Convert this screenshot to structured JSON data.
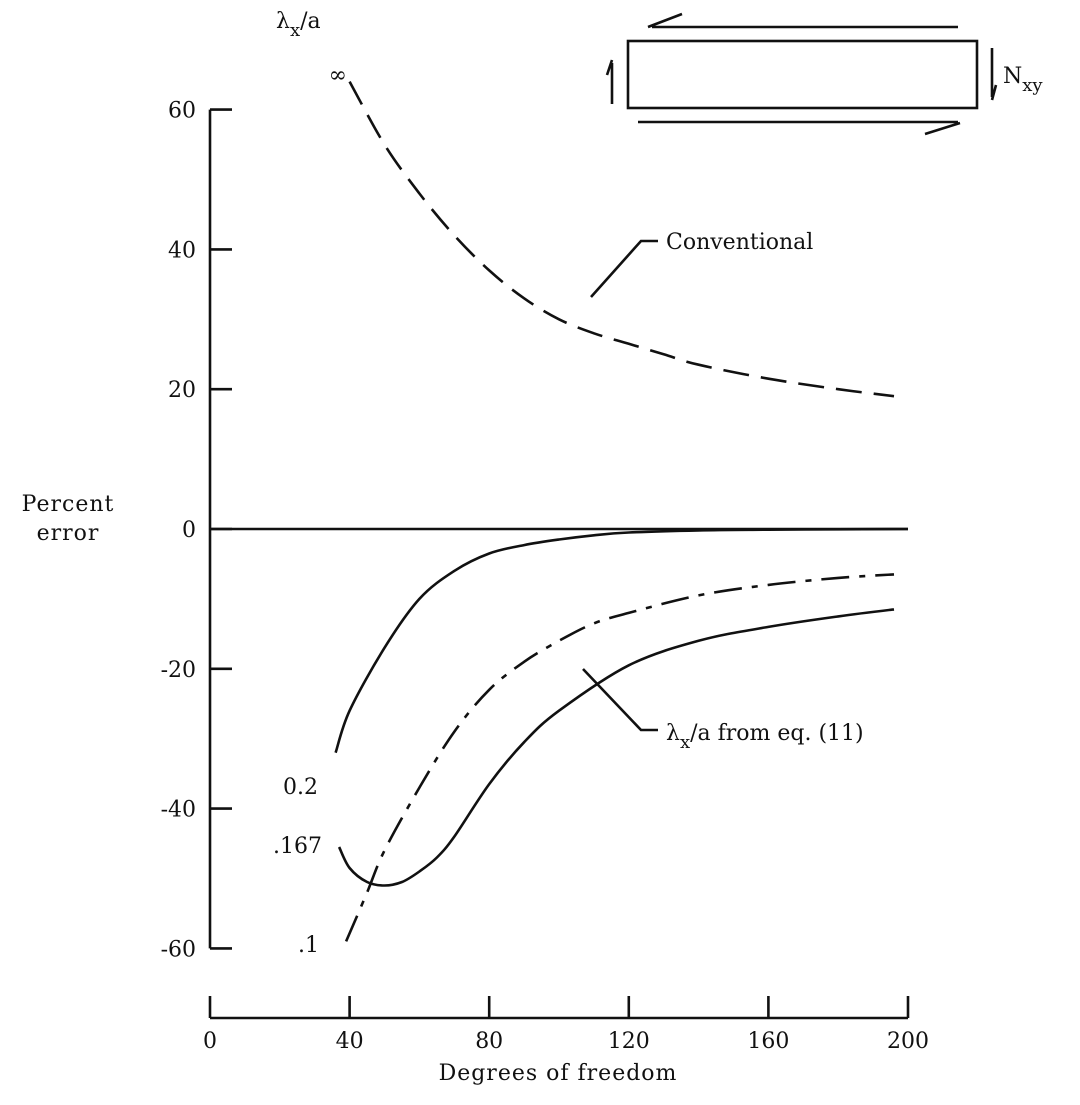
{
  "chart_data": {
    "type": "line",
    "xlabel": "Degrees of freedom",
    "ylabel": "Percent error",
    "xlim": [
      0,
      200
    ],
    "ylim": [
      -60,
      60
    ],
    "xticks": [
      0,
      40,
      80,
      120,
      160,
      200
    ],
    "xtick_labels": [
      "0",
      "40",
      "80",
      "120",
      "160",
      "200"
    ],
    "yticks": [
      60,
      40,
      20,
      0,
      -20,
      -40,
      -60
    ],
    "ytick_labels": [
      "60",
      "40",
      "20",
      "0",
      "-20",
      "-40",
      "-60"
    ],
    "legend_title": "λx/a",
    "series": [
      {
        "name": "∞",
        "style": "dashed",
        "x": [
          40,
          50,
          60,
          70,
          80,
          90,
          100,
          110,
          120,
          130,
          140,
          160,
          180,
          196
        ],
        "y": [
          64,
          55,
          48,
          42,
          37,
          33,
          30,
          28,
          26.5,
          25,
          23.5,
          21.5,
          20,
          19
        ]
      },
      {
        "name": "0.2",
        "style": "solid",
        "x": [
          36,
          40,
          50,
          60,
          70,
          80,
          90,
          100,
          110,
          120,
          140,
          160,
          180,
          200
        ],
        "y": [
          -32,
          -26,
          -17,
          -10,
          -6,
          -3.5,
          -2.3,
          -1.5,
          -0.9,
          -0.5,
          -0.2,
          -0.1,
          -0.05,
          0
        ]
      },
      {
        "name": "λx/a from eq. (11)",
        "style": "dash-dot",
        "x": [
          39,
          45,
          50,
          60,
          70,
          80,
          90,
          100,
          110,
          120,
          140,
          160,
          180,
          196
        ],
        "y": [
          -59,
          -52,
          -46,
          -37,
          -29,
          -23,
          -19,
          -16,
          -13.5,
          -12,
          -9.5,
          -8,
          -7,
          -6.5
        ]
      },
      {
        "name": ".167",
        "style": "solid",
        "x": [
          37,
          40,
          45,
          50,
          55,
          60,
          65,
          70,
          80,
          90,
          100,
          120,
          140,
          160,
          180,
          196
        ],
        "y": [
          -45.5,
          -48.5,
          -50.5,
          -51,
          -50.5,
          -49,
          -47,
          -44,
          -36.5,
          -30.5,
          -26,
          -19.5,
          -16,
          -14,
          -12.5,
          -11.5
        ]
      },
      {
        "name": ".1",
        "style": "solid",
        "x": [],
        "y": []
      }
    ],
    "annotations": [
      {
        "text": "Conventional",
        "points_to": "∞"
      },
      {
        "text": "λx/a from eq. (11)",
        "points_to": "dash-dot curve"
      }
    ],
    "inset": {
      "label": "Nxy"
    }
  }
}
